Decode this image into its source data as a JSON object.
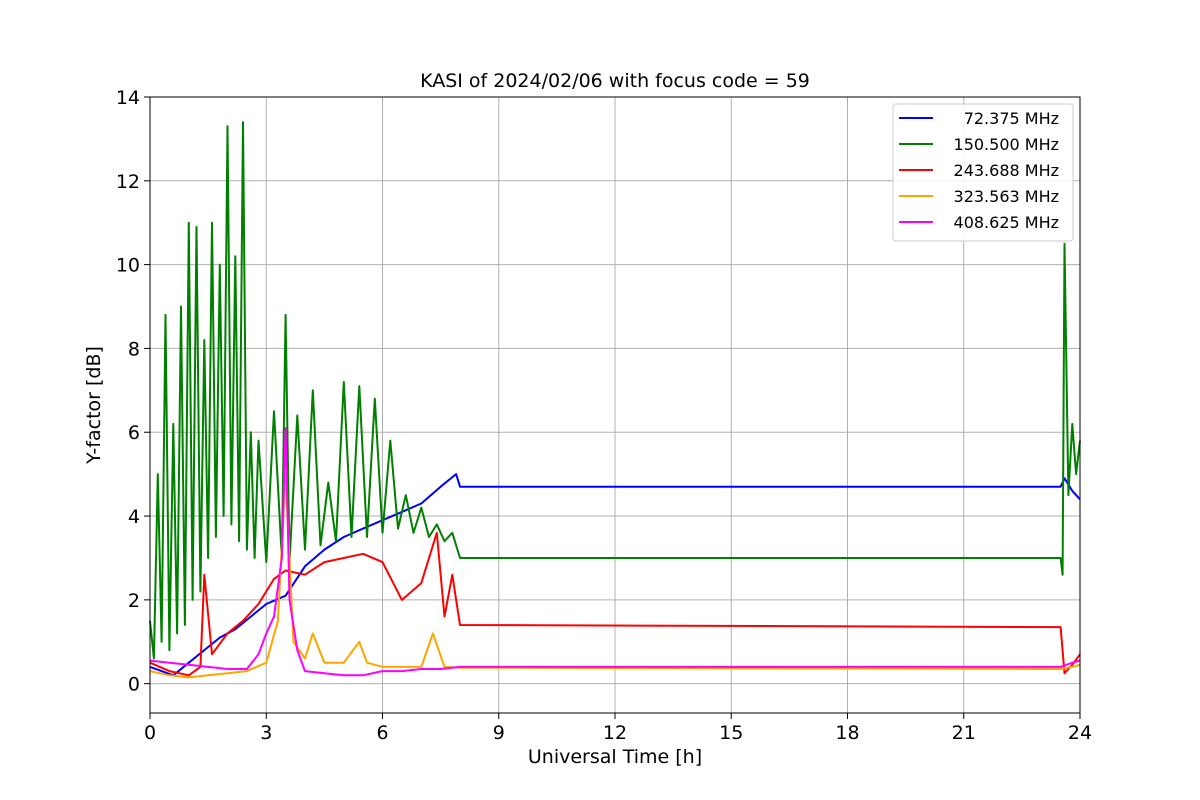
{
  "chart_data": {
    "type": "line",
    "title": "KASI of 2024/02/06 with focus code = 59",
    "xlabel": "Universal Time [h]",
    "ylabel": "Y-factor [dB]",
    "xlim": [
      0,
      24
    ],
    "ylim": [
      -0.7,
      14
    ],
    "xticks": [
      0,
      3,
      6,
      9,
      12,
      15,
      18,
      21,
      24
    ],
    "yticks": [
      0,
      2,
      4,
      6,
      8,
      10,
      12,
      14
    ],
    "grid": true,
    "legend_position": "top-right",
    "series": [
      {
        "name": "72.375 MHz",
        "color": "#0000ff",
        "x": [
          0.0,
          0.3,
          0.6,
          1.0,
          1.4,
          1.8,
          2.2,
          2.6,
          3.0,
          3.5,
          4.0,
          4.5,
          5.0,
          5.5,
          6.0,
          6.5,
          7.0,
          7.5,
          7.9,
          8.0,
          23.5,
          23.6,
          23.8,
          24.0
        ],
        "y": [
          0.4,
          0.3,
          0.2,
          0.5,
          0.8,
          1.1,
          1.3,
          1.6,
          1.9,
          2.1,
          2.8,
          3.2,
          3.5,
          3.7,
          3.9,
          4.1,
          4.3,
          4.7,
          5.0,
          4.7,
          4.7,
          4.9,
          4.6,
          4.4
        ]
      },
      {
        "name": "150.500 MHz",
        "color": "#008000",
        "x": [
          0.0,
          0.1,
          0.2,
          0.3,
          0.4,
          0.5,
          0.6,
          0.7,
          0.8,
          0.9,
          1.0,
          1.1,
          1.2,
          1.3,
          1.4,
          1.5,
          1.6,
          1.7,
          1.8,
          1.9,
          2.0,
          2.1,
          2.2,
          2.3,
          2.4,
          2.5,
          2.6,
          2.7,
          2.8,
          3.0,
          3.2,
          3.4,
          3.5,
          3.6,
          3.8,
          4.0,
          4.2,
          4.4,
          4.6,
          4.8,
          5.0,
          5.2,
          5.4,
          5.6,
          5.8,
          6.0,
          6.2,
          6.4,
          6.6,
          6.8,
          7.0,
          7.2,
          7.4,
          7.6,
          7.8,
          8.0,
          23.5,
          23.55,
          23.6,
          23.7,
          23.8,
          23.9,
          24.0
        ],
        "y": [
          1.5,
          0.6,
          5.0,
          1.0,
          8.8,
          0.8,
          6.2,
          1.2,
          9.0,
          1.4,
          11.0,
          2.0,
          10.9,
          2.2,
          8.2,
          3.0,
          11.0,
          3.5,
          10.0,
          4.0,
          13.3,
          3.8,
          10.2,
          3.4,
          13.4,
          3.2,
          6.0,
          3.0,
          5.8,
          2.9,
          6.5,
          3.0,
          8.8,
          2.9,
          6.4,
          3.2,
          7.0,
          3.3,
          4.8,
          3.4,
          7.2,
          3.5,
          7.1,
          3.5,
          6.8,
          3.6,
          5.8,
          3.7,
          4.5,
          3.6,
          4.2,
          3.5,
          3.8,
          3.4,
          3.6,
          3.0,
          3.0,
          2.6,
          10.5,
          4.5,
          6.2,
          5.0,
          5.8
        ]
      },
      {
        "name": "243.688 MHz",
        "color": "#ff0000",
        "x": [
          0.0,
          0.5,
          1.0,
          1.3,
          1.4,
          1.6,
          2.0,
          2.4,
          2.8,
          3.2,
          3.5,
          4.0,
          4.5,
          5.0,
          5.5,
          6.0,
          6.5,
          7.0,
          7.4,
          7.6,
          7.8,
          8.0,
          23.5,
          23.6,
          23.8,
          24.0
        ],
        "y": [
          0.5,
          0.3,
          0.2,
          0.4,
          2.6,
          0.7,
          1.2,
          1.5,
          1.9,
          2.5,
          2.7,
          2.6,
          2.9,
          3.0,
          3.1,
          2.9,
          2.0,
          2.4,
          3.6,
          1.6,
          2.6,
          1.4,
          1.35,
          0.25,
          0.45,
          0.7
        ]
      },
      {
        "name": "323.563 MHz",
        "color": "#ffa500",
        "x": [
          0.0,
          0.5,
          1.0,
          1.5,
          2.0,
          2.5,
          3.0,
          3.3,
          3.5,
          3.7,
          4.0,
          4.2,
          4.5,
          5.0,
          5.4,
          5.6,
          6.0,
          6.5,
          7.0,
          7.3,
          7.6,
          8.0,
          23.5,
          23.8,
          24.0
        ],
        "y": [
          0.3,
          0.2,
          0.15,
          0.2,
          0.25,
          0.3,
          0.5,
          1.5,
          5.0,
          1.0,
          0.6,
          1.2,
          0.5,
          0.5,
          1.0,
          0.5,
          0.4,
          0.4,
          0.4,
          1.2,
          0.4,
          0.38,
          0.35,
          0.4,
          0.45
        ]
      },
      {
        "name": "408.625 MHz",
        "color": "#ff00ff",
        "x": [
          0.0,
          0.5,
          1.0,
          1.5,
          2.0,
          2.5,
          2.8,
          3.0,
          3.2,
          3.4,
          3.5,
          3.6,
          3.8,
          4.0,
          4.5,
          5.0,
          5.5,
          6.0,
          6.5,
          7.0,
          7.5,
          8.0,
          23.5,
          23.8,
          24.0
        ],
        "y": [
          0.55,
          0.5,
          0.45,
          0.4,
          0.35,
          0.35,
          0.7,
          1.2,
          1.6,
          3.0,
          6.1,
          2.0,
          0.8,
          0.3,
          0.25,
          0.2,
          0.2,
          0.3,
          0.3,
          0.35,
          0.35,
          0.4,
          0.4,
          0.5,
          0.55
        ]
      }
    ]
  }
}
